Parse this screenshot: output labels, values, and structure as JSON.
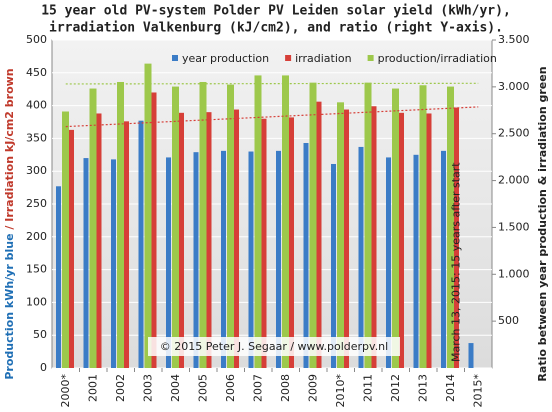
{
  "chart_data": {
    "type": "bar",
    "title": [
      "15 year old PV-system Polder PV Leiden solar yield (kWh/yr),",
      "irradiation Valkenburg (kJ/cm2), and ratio (right Y-axis)."
    ],
    "ylabel_parts": [
      "Production kWh/yr blue",
      " / Irradiation kJ/cm2 brown"
    ],
    "y2label": "Ratio between year production & irradiation green",
    "annotations": [
      "March 13, 2015: 15 years after start",
      "© 2015 Peter J. Segaar / www.polderpv.nl"
    ],
    "categories": [
      "2000*",
      "2001",
      "2002",
      "2003",
      "2004",
      "2005",
      "2006",
      "2007",
      "2008",
      "2009",
      "2010*",
      "2011",
      "2012",
      "2013",
      "2014",
      "2015*"
    ],
    "series": [
      {
        "name": "year production",
        "color": "#3b7cc6",
        "values": [
          277,
          320,
          318,
          377,
          321,
          329,
          331,
          330,
          331,
          343,
          311,
          337,
          321,
          325,
          331,
          38
        ]
      },
      {
        "name": "irradiation",
        "color": "#d63f38",
        "values": [
          363,
          388,
          376,
          420,
          389,
          390,
          394,
          380,
          382,
          406,
          394,
          399,
          389,
          388,
          397,
          null
        ]
      },
      {
        "name": "production/irradiation",
        "color": "#9dc84b",
        "axis": "y2",
        "values": [
          2737,
          2982,
          3052,
          3248,
          3003,
          3052,
          3024,
          3122,
          3122,
          3045,
          2835,
          3045,
          2982,
          3017,
          3003,
          null
        ]
      }
    ],
    "trendlines": [
      {
        "color": "#d63f38",
        "values": [
          368,
          398
        ]
      },
      {
        "color": "#9dc84b",
        "values": [
          433,
          434
        ]
      }
    ],
    "ylim": [
      0,
      500
    ],
    "yticks": [
      0,
      50,
      100,
      150,
      200,
      250,
      300,
      350,
      400,
      450,
      500
    ],
    "y2lim": [
      0,
      3500
    ],
    "y2ticks": [
      500,
      {
        "value": 1000,
        "label": "1.000"
      },
      {
        "value": 1500,
        "label": "1.500"
      },
      {
        "value": 2000,
        "label": "2.000"
      },
      {
        "value": 2500,
        "label": "2.500"
      },
      {
        "value": 3000,
        "label": "3.000"
      },
      {
        "value": 3500,
        "label": "3.500"
      }
    ],
    "grid": true,
    "legend": "top"
  }
}
